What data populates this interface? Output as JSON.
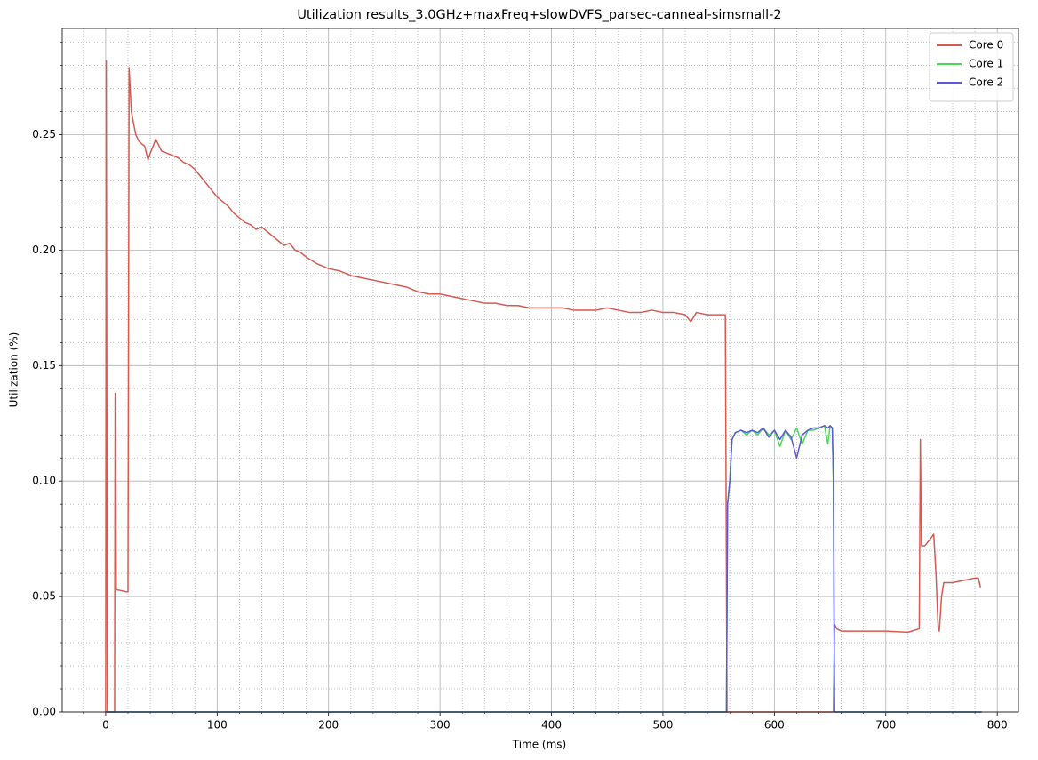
{
  "chart_data": {
    "type": "line",
    "title": "Utilization results_3.0GHz+maxFreq+slowDVFS_parsec-canneal-simsmall-2",
    "x_label": "Time (ms)",
    "y_label": "Utilization (%)",
    "xlim": [
      -39,
      819
    ],
    "ylim": [
      0,
      0.296
    ],
    "xticks": [
      0,
      100,
      200,
      300,
      400,
      500,
      600,
      700,
      800
    ],
    "yticks": [
      {
        "value": 0,
        "label": "0.00"
      },
      {
        "value": 0.05,
        "label": "0.05"
      },
      {
        "value": 0.1,
        "label": "0.10"
      },
      {
        "value": 0.15,
        "label": "0.15"
      },
      {
        "value": 0.2,
        "label": "0.20"
      },
      {
        "value": 0.25,
        "label": "0.25"
      }
    ],
    "xminorticks": [
      -20,
      20,
      40,
      60,
      80,
      120,
      140,
      160,
      180,
      220,
      240,
      260,
      280,
      320,
      340,
      360,
      380,
      420,
      440,
      460,
      480,
      520,
      540,
      560,
      580,
      620,
      640,
      660,
      680,
      720,
      740,
      760,
      780
    ],
    "yminorticks": [
      0.01,
      0.02,
      0.03,
      0.04,
      0.06,
      0.07,
      0.08,
      0.09,
      0.11,
      0.12,
      0.13,
      0.14,
      0.16,
      0.17,
      0.18,
      0.19,
      0.21,
      0.22,
      0.23,
      0.24,
      0.26,
      0.27,
      0.28,
      0.29
    ],
    "grid": true,
    "minor_grid": true,
    "legend": "upper right",
    "series": [
      {
        "name": "Core 0",
        "color": "#d65a52",
        "x": [
          0,
          0.5,
          1.5,
          8,
          8.5,
          9.5,
          19,
          20,
          21,
          23,
          27,
          30,
          35,
          38,
          40,
          45,
          50,
          55,
          60,
          65,
          70,
          75,
          80,
          85,
          90,
          95,
          100,
          105,
          110,
          115,
          120,
          125,
          130,
          135,
          140,
          145,
          150,
          155,
          160,
          165,
          170,
          175,
          180,
          190,
          200,
          210,
          220,
          230,
          240,
          250,
          260,
          270,
          280,
          290,
          300,
          310,
          320,
          330,
          340,
          350,
          360,
          370,
          380,
          390,
          400,
          410,
          420,
          430,
          440,
          450,
          460,
          470,
          480,
          490,
          500,
          510,
          520,
          525,
          530,
          540,
          550,
          556,
          557.5,
          653,
          654,
          656,
          660,
          680,
          700,
          720,
          730,
          731,
          732,
          735,
          740,
          743,
          745,
          747,
          748,
          750,
          752,
          760,
          770,
          780,
          783,
          785
        ],
        "values": [
          0,
          0.282,
          0,
          0,
          0.138,
          0.053,
          0.052,
          0.052,
          0.279,
          0.26,
          0.25,
          0.247,
          0.245,
          0.239,
          0.242,
          0.248,
          0.243,
          0.242,
          0.241,
          0.24,
          0.238,
          0.237,
          0.235,
          0.232,
          0.229,
          0.226,
          0.223,
          0.221,
          0.219,
          0.216,
          0.214,
          0.212,
          0.211,
          0.209,
          0.21,
          0.208,
          0.206,
          0.204,
          0.202,
          0.203,
          0.2,
          0.199,
          0.197,
          0.194,
          0.192,
          0.191,
          0.189,
          0.188,
          0.187,
          0.186,
          0.185,
          0.184,
          0.182,
          0.181,
          0.181,
          0.18,
          0.179,
          0.178,
          0.177,
          0.177,
          0.176,
          0.176,
          0.175,
          0.175,
          0.175,
          0.175,
          0.174,
          0.174,
          0.174,
          0.175,
          0.174,
          0.173,
          0.173,
          0.174,
          0.173,
          0.173,
          0.172,
          0.169,
          0.173,
          0.172,
          0.172,
          0.172,
          0,
          0,
          0.038,
          0.036,
          0.035,
          0.035,
          0.035,
          0.0345,
          0.036,
          0.118,
          0.072,
          0.072,
          0.075,
          0.077,
          0.06,
          0.036,
          0.035,
          0.05,
          0.056,
          0.056,
          0.057,
          0.058,
          0.058,
          0.054
        ]
      },
      {
        "name": "Core 1",
        "color": "#4fd65a",
        "x": [
          0,
          557,
          558,
          560,
          562,
          565,
          570,
          575,
          580,
          585,
          590,
          595,
          600,
          605,
          610,
          615,
          620,
          625,
          630,
          635,
          640,
          645,
          648,
          650,
          652,
          653,
          654,
          786
        ],
        "values": [
          0,
          0,
          0.09,
          0.1,
          0.118,
          0.121,
          0.122,
          0.12,
          0.122,
          0.12,
          0.123,
          0.12,
          0.122,
          0.115,
          0.122,
          0.118,
          0.123,
          0.116,
          0.122,
          0.122,
          0.123,
          0.124,
          0.116,
          0.124,
          0.123,
          0.1,
          0,
          0
        ]
      },
      {
        "name": "Core 2",
        "color": "#5a5ad6",
        "x": [
          0,
          557,
          558,
          560,
          562,
          565,
          570,
          575,
          580,
          585,
          590,
          595,
          600,
          605,
          610,
          615,
          620,
          625,
          630,
          635,
          640,
          645,
          648,
          650,
          652,
          653,
          654,
          786
        ],
        "values": [
          0,
          0,
          0.09,
          0.1,
          0.118,
          0.121,
          0.122,
          0.121,
          0.122,
          0.121,
          0.123,
          0.119,
          0.122,
          0.118,
          0.122,
          0.119,
          0.11,
          0.12,
          0.122,
          0.123,
          0.123,
          0.124,
          0.123,
          0.124,
          0.123,
          0.1,
          0,
          0
        ]
      }
    ]
  }
}
